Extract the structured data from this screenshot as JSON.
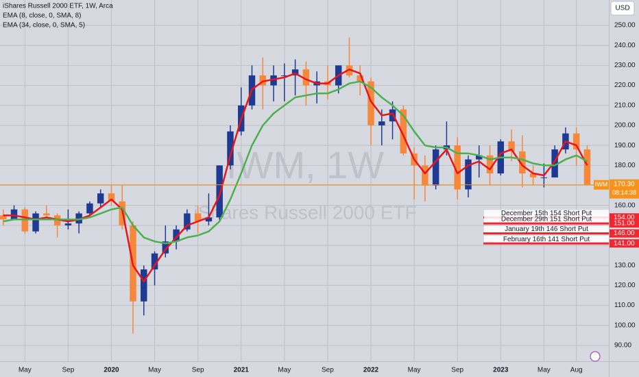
{
  "chart_data": {
    "type": "candlestick",
    "title": "iShares Russell 2000 ETF, 1W, Arca",
    "currency": "USD",
    "watermark": "IWM, 1W",
    "watermark_sub": "iShares Russell 2000 ETF",
    "up_color": "#1f3a93",
    "down_color": "#f7873b",
    "ohlc": [
      [
        155,
        158,
        150,
        153
      ],
      [
        153,
        160,
        153,
        158
      ],
      [
        158,
        159,
        146,
        147
      ],
      [
        147,
        157,
        146,
        156
      ],
      [
        156,
        160,
        153,
        155
      ],
      [
        155,
        156,
        144,
        150
      ],
      [
        150,
        158,
        148,
        151
      ],
      [
        151,
        157,
        146,
        156
      ],
      [
        156,
        162,
        155,
        161
      ],
      [
        161,
        168,
        159,
        166
      ],
      [
        166,
        170,
        160,
        162
      ],
      [
        162,
        170,
        148,
        150
      ],
      [
        150,
        152,
        96,
        112
      ],
      [
        112,
        130,
        105,
        128
      ],
      [
        128,
        137,
        120,
        136
      ],
      [
        136,
        150,
        134,
        142
      ],
      [
        142,
        150,
        138,
        148
      ],
      [
        148,
        158,
        147,
        156
      ],
      [
        156,
        160,
        146,
        152
      ],
      [
        152,
        166,
        150,
        154
      ],
      [
        154,
        180,
        152,
        180
      ],
      [
        180,
        200,
        178,
        197
      ],
      [
        197,
        219,
        195,
        210
      ],
      [
        210,
        230,
        208,
        225
      ],
      [
        225,
        234,
        208,
        220
      ],
      [
        220,
        230,
        212,
        225
      ],
      [
        225,
        231,
        212,
        225
      ],
      [
        225,
        233,
        215,
        228
      ],
      [
        228,
        232,
        210,
        220
      ],
      [
        220,
        227,
        211,
        222
      ],
      [
        222,
        230,
        213,
        220
      ],
      [
        220,
        230,
        216,
        230
      ],
      [
        230,
        244,
        224,
        225
      ],
      [
        225,
        230,
        215,
        222
      ],
      [
        222,
        224,
        190,
        200
      ],
      [
        200,
        208,
        190,
        202
      ],
      [
        202,
        212,
        193,
        208
      ],
      [
        208,
        210,
        185,
        186
      ],
      [
        186,
        189,
        163,
        180
      ],
      [
        180,
        185,
        162,
        170
      ],
      [
        170,
        190,
        168,
        188
      ],
      [
        188,
        202,
        185,
        190
      ],
      [
        190,
        194,
        163,
        168
      ],
      [
        168,
        185,
        164,
        183
      ],
      [
        183,
        190,
        174,
        185
      ],
      [
        185,
        190,
        170,
        176
      ],
      [
        176,
        193,
        175,
        192
      ],
      [
        192,
        198,
        182,
        187
      ],
      [
        187,
        195,
        169,
        176
      ],
      [
        176,
        180,
        170,
        174
      ],
      [
        174,
        181,
        169,
        174
      ],
      [
        174,
        190,
        174,
        188
      ],
      [
        188,
        199,
        186,
        196
      ],
      [
        196,
        199,
        180,
        188
      ],
      [
        188,
        190,
        170,
        170.3
      ]
    ],
    "series": [
      {
        "name": "EMA (8, close, 0, SMA, 8)",
        "color": "#e8141b",
        "values": [
          155,
          155,
          154,
          153,
          154,
          153,
          152,
          153,
          155,
          159,
          163,
          158,
          130,
          122,
          130,
          138,
          144,
          150,
          152,
          154,
          165,
          185,
          203,
          218,
          222,
          223,
          224,
          226,
          223,
          221,
          221,
          225,
          228,
          226,
          212,
          205,
          206,
          195,
          183,
          176,
          182,
          188,
          176,
          180,
          182,
          178,
          186,
          188,
          180,
          176,
          175,
          182,
          192,
          190,
          180
        ]
      },
      {
        "name": "EMA (34, close, 0, SMA, 5)",
        "color": "#4caf50",
        "values": [
          152,
          153,
          153,
          153,
          153,
          153,
          153,
          153,
          154,
          156,
          158,
          159,
          150,
          144,
          142,
          141,
          142,
          144,
          145,
          147,
          152,
          163,
          176,
          190,
          200,
          206,
          210,
          214,
          215,
          216,
          216,
          218,
          221,
          222,
          219,
          214,
          210,
          205,
          197,
          190,
          189,
          189,
          186,
          186,
          185,
          183,
          184,
          184,
          183,
          181,
          180,
          180,
          183,
          185,
          182
        ]
      }
    ],
    "xlim": [
      -0.3,
      56
    ],
    "xticks": [
      {
        "value": 2,
        "label": "May"
      },
      {
        "value": 6,
        "label": "Sep"
      },
      {
        "value": 10,
        "label": "2020"
      },
      {
        "value": 14,
        "label": "May"
      },
      {
        "value": 18,
        "label": "Sep"
      },
      {
        "value": 22,
        "label": "2021"
      },
      {
        "value": 26,
        "label": "May"
      },
      {
        "value": 30,
        "label": "Sep"
      },
      {
        "value": 34,
        "label": "2022"
      },
      {
        "value": 38,
        "label": "May"
      },
      {
        "value": 42,
        "label": "Sep"
      },
      {
        "value": 46,
        "label": "2023"
      },
      {
        "value": 50,
        "label": "May"
      },
      {
        "value": 53,
        "label": "Aug"
      }
    ],
    "ylim": [
      82.1,
      262.7
    ],
    "yticks": [
      {
        "value": 90,
        "label": "90.00"
      },
      {
        "value": 100,
        "label": "100.00"
      },
      {
        "value": 110,
        "label": "110.00"
      },
      {
        "value": 120,
        "label": "120.00"
      },
      {
        "value": 130,
        "label": "130.00"
      },
      {
        "value": 140,
        "label": "140.00"
      },
      {
        "value": 150,
        "label": "150.00"
      },
      {
        "value": 160,
        "label": "160.00"
      },
      {
        "value": 170,
        "label": "170.00"
      },
      {
        "value": 180,
        "label": "180.00"
      },
      {
        "value": 190,
        "label": "190.00"
      },
      {
        "value": 200,
        "label": "200.00"
      },
      {
        "value": 210,
        "label": "210.00"
      },
      {
        "value": 220,
        "label": "220.00"
      },
      {
        "value": 230,
        "label": "230.00"
      },
      {
        "value": 240,
        "label": "240.00"
      },
      {
        "value": 250,
        "label": "250.00"
      }
    ],
    "grid": true,
    "last_price": {
      "value": 170.3,
      "label": "170.30",
      "countdown": "08:14:38",
      "symbol": "IWM",
      "color": "#f7931a"
    },
    "levels": [
      {
        "text": "December 15th 154 Short Put",
        "value": 154,
        "label": "154.00"
      },
      {
        "text": "December 29th 151 Short Put",
        "value": 151,
        "label": "151.00"
      },
      {
        "text": "January 19th 146 Short Put",
        "value": 146,
        "label": "146.00"
      },
      {
        "text": "February 16th 141 Short Put",
        "value": 141,
        "label": "141.00"
      }
    ],
    "level_color": "#f2262e"
  }
}
